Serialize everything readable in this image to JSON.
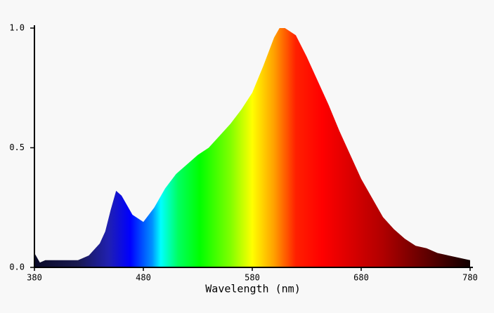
{
  "chart_data": {
    "type": "area",
    "xlabel": "Wavelength (nm)",
    "x": [
      380,
      385,
      390,
      400,
      410,
      420,
      430,
      440,
      445,
      450,
      455,
      460,
      465,
      470,
      480,
      490,
      500,
      510,
      520,
      530,
      540,
      550,
      560,
      570,
      580,
      590,
      600,
      605,
      610,
      620,
      630,
      640,
      650,
      660,
      670,
      680,
      690,
      700,
      710,
      720,
      730,
      740,
      750,
      760,
      770,
      780
    ],
    "values": [
      0.06,
      0.02,
      0.03,
      0.03,
      0.03,
      0.03,
      0.05,
      0.1,
      0.15,
      0.24,
      0.32,
      0.3,
      0.26,
      0.22,
      0.19,
      0.25,
      0.33,
      0.39,
      0.43,
      0.47,
      0.5,
      0.55,
      0.6,
      0.66,
      0.73,
      0.84,
      0.96,
      1.0,
      1.0,
      0.97,
      0.88,
      0.78,
      0.68,
      0.57,
      0.47,
      0.37,
      0.29,
      0.21,
      0.16,
      0.12,
      0.09,
      0.08,
      0.06,
      0.05,
      0.04,
      0.03
    ],
    "xlim": [
      380,
      780
    ],
    "xticks": [
      380,
      480,
      580,
      680,
      780
    ],
    "ylim": [
      0,
      1
    ],
    "yticks": [
      {
        "value": 0,
        "label": "0.0"
      },
      0.5,
      {
        "value": 1,
        "label": "1.0"
      }
    ]
  }
}
